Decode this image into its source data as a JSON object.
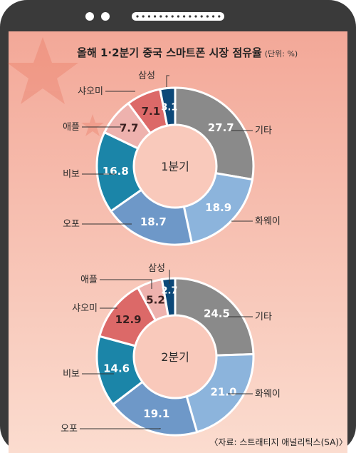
{
  "title": "올해 1·2분기 중국 스마트폰 시장 점유율",
  "unit": "(단위: %)",
  "source": "〈자료: 스트래티지 애널리틱스(SA)〉",
  "colors": {
    "기타": "#8a8a8a",
    "화웨이": "#8cb4dc",
    "오포": "#6e98c8",
    "비보": "#1b85a8",
    "애플": "#eeb2ae",
    "샤오미": "#dc6968",
    "삼성": "#0c4878",
    "phone_frame": "#3a3a3a",
    "background_top": "#f3a898",
    "background_bottom": "#fbdccf"
  },
  "chart_data": [
    {
      "type": "pie",
      "center_label": "1분기",
      "categories": [
        "기타",
        "화웨이",
        "오포",
        "비보",
        "애플",
        "샤오미",
        "삼성"
      ],
      "values": [
        27.7,
        18.9,
        18.7,
        16.8,
        7.7,
        7.1,
        3.1
      ],
      "value_labels": [
        "27.7",
        "18.9",
        "18.7",
        "16.8",
        "7.7",
        "7.1",
        "3.1"
      ]
    },
    {
      "type": "pie",
      "center_label": "2분기",
      "categories": [
        "기타",
        "화웨이",
        "오포",
        "비보",
        "샤오미",
        "애플",
        "삼성"
      ],
      "values": [
        24.5,
        21.0,
        19.1,
        14.6,
        12.9,
        5.2,
        2.7
      ],
      "value_labels": [
        "24.5",
        "21.0",
        "19.1",
        "14.6",
        "12.9",
        "5.2",
        "2.7"
      ]
    }
  ]
}
